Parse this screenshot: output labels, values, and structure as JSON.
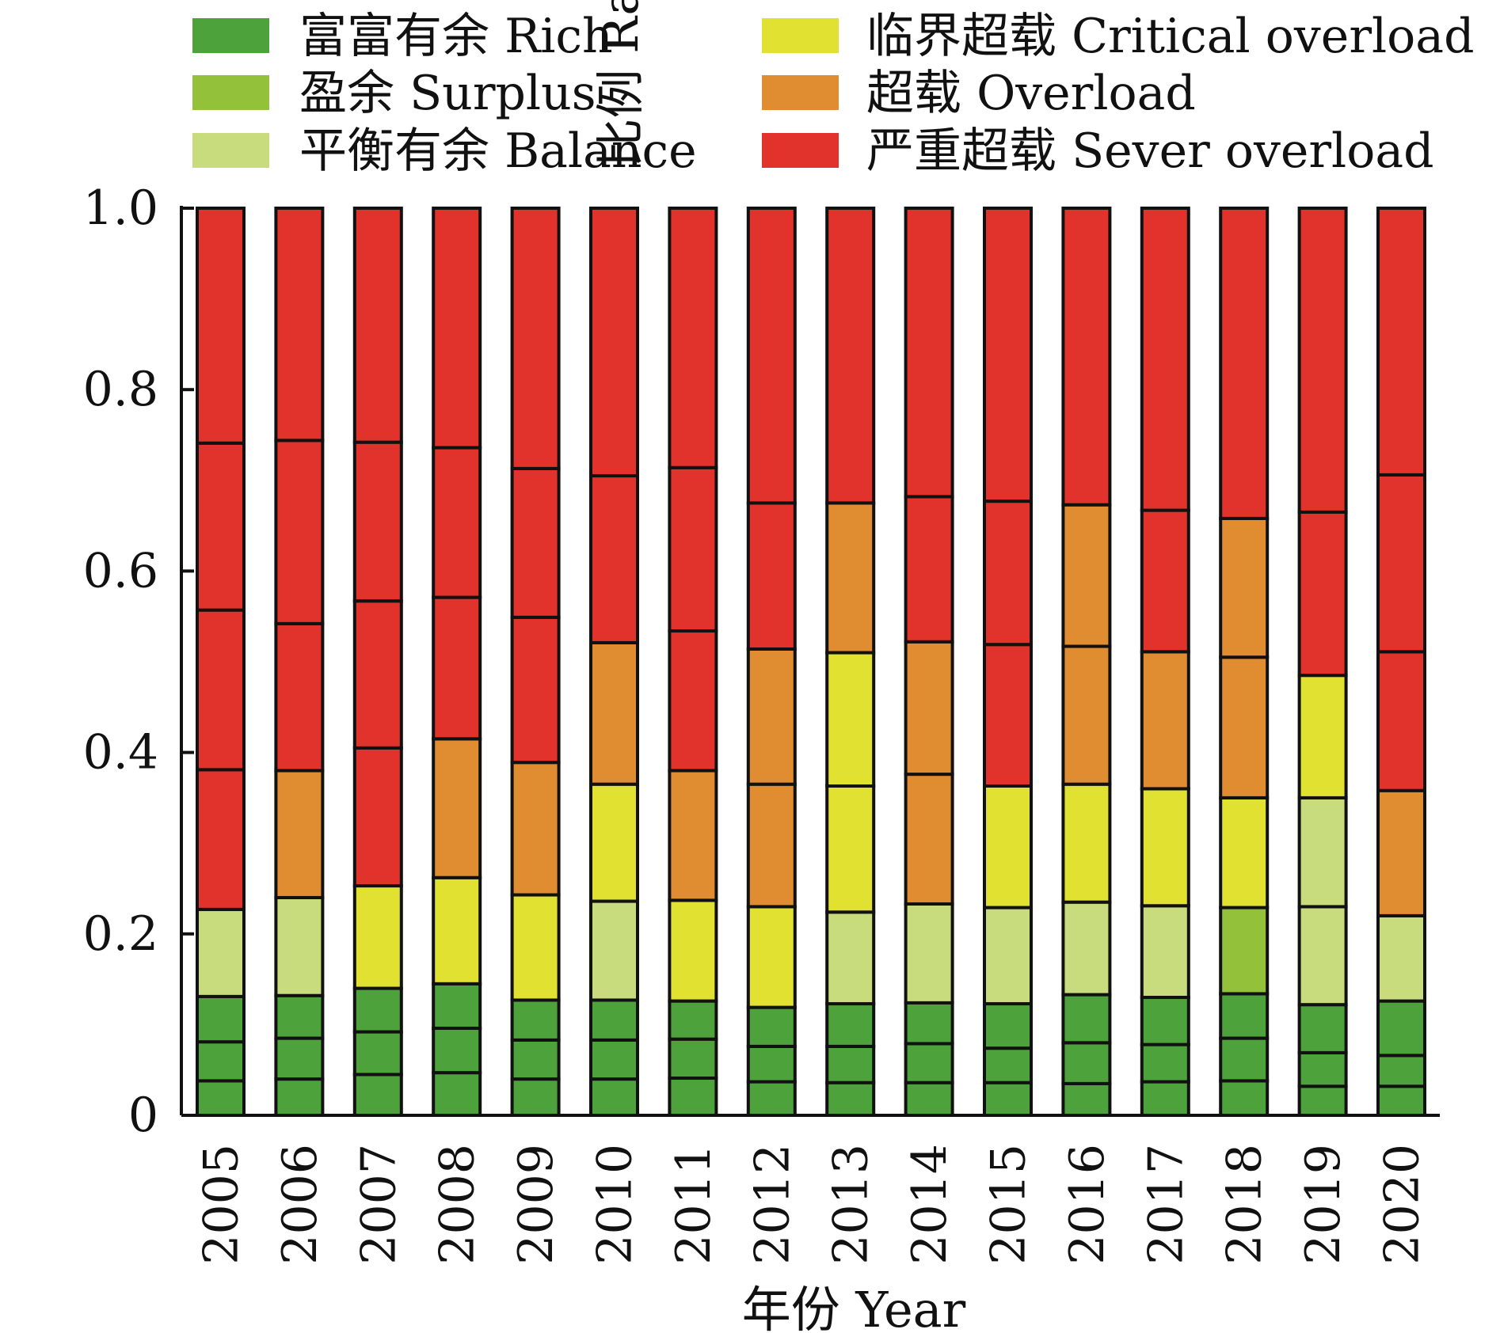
{
  "chart_data": {
    "type": "bar",
    "stacked": true,
    "title": "",
    "xlabel": "年份 Year",
    "ylabel": "比例 Ratio",
    "ylim": [
      0,
      1
    ],
    "yticks": [
      0,
      0.2,
      0.4,
      0.6,
      0.8,
      1.0
    ],
    "ytick_labels": [
      "0",
      "0.2",
      "0.4",
      "0.6",
      "0.8",
      "1.0"
    ],
    "legend_position": "top",
    "categories": [
      "2005",
      "2006",
      "2007",
      "2008",
      "2009",
      "2010",
      "2011",
      "2012",
      "2013",
      "2014",
      "2015",
      "2016",
      "2017",
      "2018",
      "2019",
      "2020"
    ],
    "series": [
      {
        "name": "富富有余 Rich",
        "color": "#4ea23c",
        "segments": [
          [
            0.038,
            0.081,
            0.131
          ],
          [
            0.04,
            0.085,
            0.132
          ],
          [
            0.045,
            0.092,
            0.14
          ],
          [
            0.047,
            0.096,
            0.145
          ],
          [
            0.04,
            0.083,
            0.127
          ],
          [
            0.04,
            0.083,
            0.127
          ],
          [
            0.041,
            0.084,
            0.126
          ],
          [
            0.037,
            0.076,
            0.119
          ],
          [
            0.036,
            0.076,
            0.123
          ],
          [
            0.036,
            0.079,
            0.124
          ],
          [
            0.036,
            0.074,
            0.123
          ],
          [
            0.035,
            0.08,
            0.133
          ],
          [
            0.037,
            0.078,
            0.13
          ],
          [
            0.038,
            0.085,
            0.134
          ],
          [
            0.032,
            0.069,
            0.122
          ],
          [
            0.032,
            0.066,
            0.126
          ]
        ]
      },
      {
        "name": "盈余 Surplus",
        "color": "#93c13a",
        "segments": [
          [],
          [],
          [],
          [],
          [],
          [],
          [],
          [],
          [],
          [],
          [],
          [],
          [],
          [
            0.229
          ],
          [],
          []
        ]
      },
      {
        "name": "平衡有余 Balance",
        "color": "#c9dc7d",
        "segments": [
          [
            0.227
          ],
          [
            0.24
          ],
          [],
          [],
          [],
          [
            0.236
          ],
          [],
          [],
          [
            0.224
          ],
          [
            0.233
          ],
          [
            0.229
          ],
          [
            0.235
          ],
          [
            0.231
          ],
          [],
          [
            0.23,
            0.35
          ],
          [
            0.22
          ]
        ]
      },
      {
        "name": "临界超载 Critical overload",
        "color": "#e1e132",
        "segments": [
          [],
          [],
          [
            0.253
          ],
          [
            0.262
          ],
          [
            0.243
          ],
          [
            0.365
          ],
          [
            0.237
          ],
          [
            0.23
          ],
          [
            0.363,
            0.51
          ],
          [],
          [
            0.363
          ],
          [
            0.365
          ],
          [
            0.36
          ],
          [
            0.35
          ],
          [
            0.485
          ],
          []
        ]
      },
      {
        "name": "超载 Overload",
        "color": "#e08c30",
        "segments": [
          [],
          [
            0.38
          ],
          [],
          [
            0.415
          ],
          [
            0.389
          ],
          [
            0.521
          ],
          [
            0.38
          ],
          [
            0.365,
            0.514
          ],
          [
            0.675
          ],
          [
            0.376,
            0.522
          ],
          [],
          [
            0.517,
            0.673
          ],
          [
            0.511
          ],
          [
            0.505,
            0.658
          ],
          [],
          [
            0.358
          ]
        ]
      },
      {
        "name": "严重超载 Sever overload",
        "color": "#e1332b",
        "segments": [
          [
            0.381,
            0.557,
            0.741,
            1.0
          ],
          [
            0.542,
            0.744,
            1.0
          ],
          [
            0.405,
            0.567,
            0.742,
            1.0
          ],
          [
            0.571,
            0.736,
            1.0
          ],
          [
            0.549,
            0.713,
            1.0
          ],
          [
            0.705,
            1.0
          ],
          [
            0.534,
            0.714,
            1.0
          ],
          [
            0.675,
            1.0
          ],
          [
            1.0
          ],
          [
            0.682,
            1.0
          ],
          [
            0.519,
            0.677,
            1.0
          ],
          [
            1.0
          ],
          [
            0.667,
            1.0
          ],
          [
            1.0
          ],
          [
            0.665,
            1.0
          ],
          [
            0.511,
            0.706,
            1.0
          ]
        ]
      }
    ]
  }
}
